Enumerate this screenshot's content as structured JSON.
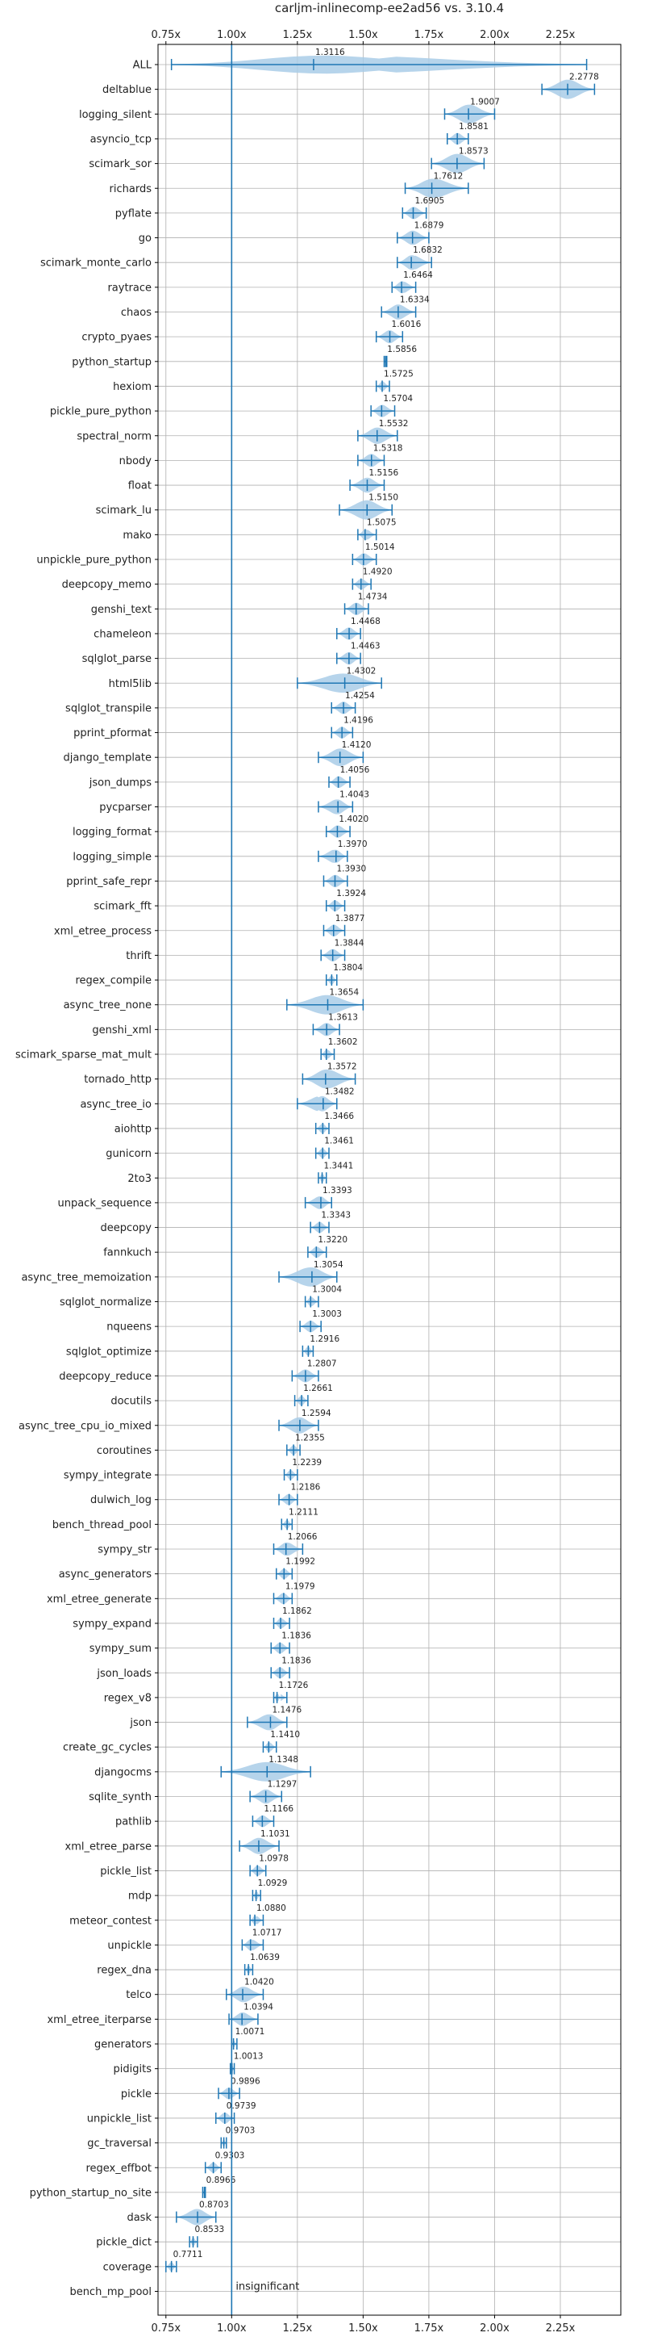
{
  "chart_data": {
    "type": "violin",
    "title": "carljm-inlinecomp-ee2ad56 vs. 3.10.4",
    "xlim": [
      0.72,
      2.48
    ],
    "xticks": [
      0.75,
      1.0,
      1.25,
      1.5,
      1.75,
      2.0,
      2.25
    ],
    "xtick_labels": [
      "0.75x",
      "1.00x",
      "1.25x",
      "1.50x",
      "1.75x",
      "2.00x",
      "2.25x"
    ],
    "reference_line": 1.0,
    "grid": true,
    "colors": {
      "accent": "#1f77b4",
      "violin": "#a9cce8",
      "grid": "#b0b0b0"
    },
    "annotation": "insignificant",
    "benchmarks": [
      {
        "name": "ALL",
        "value": 1.3116,
        "min": 0.7711,
        "max": 2.35
      },
      {
        "name": "deltablue",
        "value": 2.2778,
        "min": 2.18,
        "max": 2.38
      },
      {
        "name": "logging_silent",
        "value": 1.9007,
        "min": 1.81,
        "max": 2.0
      },
      {
        "name": "asyncio_tcp",
        "value": 1.8581,
        "min": 1.82,
        "max": 1.9
      },
      {
        "name": "scimark_sor",
        "value": 1.8573,
        "min": 1.76,
        "max": 1.96
      },
      {
        "name": "richards",
        "value": 1.7612,
        "min": 1.66,
        "max": 1.9
      },
      {
        "name": "pyflate",
        "value": 1.6905,
        "min": 1.65,
        "max": 1.74
      },
      {
        "name": "go",
        "value": 1.6879,
        "min": 1.63,
        "max": 1.75
      },
      {
        "name": "scimark_monte_carlo",
        "value": 1.6832,
        "min": 1.63,
        "max": 1.76
      },
      {
        "name": "raytrace",
        "value": 1.6464,
        "min": 1.61,
        "max": 1.7
      },
      {
        "name": "chaos",
        "value": 1.6334,
        "min": 1.57,
        "max": 1.7
      },
      {
        "name": "crypto_pyaes",
        "value": 1.6016,
        "min": 1.55,
        "max": 1.65
      },
      {
        "name": "python_startup",
        "value": 1.5856,
        "min": 1.58,
        "max": 1.59
      },
      {
        "name": "hexiom",
        "value": 1.5725,
        "min": 1.55,
        "max": 1.6
      },
      {
        "name": "pickle_pure_python",
        "value": 1.5704,
        "min": 1.53,
        "max": 1.62
      },
      {
        "name": "spectral_norm",
        "value": 1.5532,
        "min": 1.48,
        "max": 1.63
      },
      {
        "name": "nbody",
        "value": 1.5318,
        "min": 1.48,
        "max": 1.58
      },
      {
        "name": "float",
        "value": 1.5156,
        "min": 1.45,
        "max": 1.58
      },
      {
        "name": "scimark_lu",
        "value": 1.515,
        "min": 1.41,
        "max": 1.61
      },
      {
        "name": "mako",
        "value": 1.5075,
        "min": 1.48,
        "max": 1.55
      },
      {
        "name": "unpickle_pure_python",
        "value": 1.5014,
        "min": 1.46,
        "max": 1.55
      },
      {
        "name": "deepcopy_memo",
        "value": 1.492,
        "min": 1.46,
        "max": 1.53
      },
      {
        "name": "genshi_text",
        "value": 1.4734,
        "min": 1.43,
        "max": 1.52
      },
      {
        "name": "chameleon",
        "value": 1.4468,
        "min": 1.4,
        "max": 1.49
      },
      {
        "name": "sqlglot_parse",
        "value": 1.4463,
        "min": 1.4,
        "max": 1.49
      },
      {
        "name": "html5lib",
        "value": 1.4302,
        "min": 1.25,
        "max": 1.57
      },
      {
        "name": "sqlglot_transpile",
        "value": 1.4254,
        "min": 1.38,
        "max": 1.47
      },
      {
        "name": "pprint_pformat",
        "value": 1.4196,
        "min": 1.38,
        "max": 1.46
      },
      {
        "name": "django_template",
        "value": 1.412,
        "min": 1.33,
        "max": 1.5
      },
      {
        "name": "json_dumps",
        "value": 1.4056,
        "min": 1.37,
        "max": 1.45
      },
      {
        "name": "pycparser",
        "value": 1.4043,
        "min": 1.33,
        "max": 1.46
      },
      {
        "name": "logging_format",
        "value": 1.402,
        "min": 1.36,
        "max": 1.45
      },
      {
        "name": "logging_simple",
        "value": 1.397,
        "min": 1.33,
        "max": 1.44
      },
      {
        "name": "pprint_safe_repr",
        "value": 1.393,
        "min": 1.35,
        "max": 1.44
      },
      {
        "name": "scimark_fft",
        "value": 1.3924,
        "min": 1.36,
        "max": 1.43
      },
      {
        "name": "xml_etree_process",
        "value": 1.3877,
        "min": 1.35,
        "max": 1.43
      },
      {
        "name": "thrift",
        "value": 1.3844,
        "min": 1.34,
        "max": 1.43
      },
      {
        "name": "regex_compile",
        "value": 1.3804,
        "min": 1.36,
        "max": 1.4
      },
      {
        "name": "async_tree_none",
        "value": 1.3654,
        "min": 1.21,
        "max": 1.5
      },
      {
        "name": "genshi_xml",
        "value": 1.3613,
        "min": 1.31,
        "max": 1.41
      },
      {
        "name": "scimark_sparse_mat_mult",
        "value": 1.3602,
        "min": 1.34,
        "max": 1.39
      },
      {
        "name": "tornado_http",
        "value": 1.3572,
        "min": 1.27,
        "max": 1.47
      },
      {
        "name": "async_tree_io",
        "value": 1.3482,
        "min": 1.25,
        "max": 1.4
      },
      {
        "name": "aiohttp",
        "value": 1.3466,
        "min": 1.32,
        "max": 1.37
      },
      {
        "name": "gunicorn",
        "value": 1.3461,
        "min": 1.32,
        "max": 1.37
      },
      {
        "name": "2to3",
        "value": 1.3441,
        "min": 1.33,
        "max": 1.36
      },
      {
        "name": "unpack_sequence",
        "value": 1.3393,
        "min": 1.28,
        "max": 1.38
      },
      {
        "name": "deepcopy",
        "value": 1.3343,
        "min": 1.3,
        "max": 1.37
      },
      {
        "name": "fannkuch",
        "value": 1.322,
        "min": 1.29,
        "max": 1.36
      },
      {
        "name": "async_tree_memoization",
        "value": 1.3054,
        "min": 1.18,
        "max": 1.4
      },
      {
        "name": "sqlglot_normalize",
        "value": 1.3004,
        "min": 1.28,
        "max": 1.33
      },
      {
        "name": "nqueens",
        "value": 1.3003,
        "min": 1.26,
        "max": 1.34
      },
      {
        "name": "sqlglot_optimize",
        "value": 1.2916,
        "min": 1.27,
        "max": 1.31
      },
      {
        "name": "deepcopy_reduce",
        "value": 1.2807,
        "min": 1.23,
        "max": 1.33
      },
      {
        "name": "docutils",
        "value": 1.2661,
        "min": 1.24,
        "max": 1.29
      },
      {
        "name": "async_tree_cpu_io_mixed",
        "value": 1.2594,
        "min": 1.18,
        "max": 1.33
      },
      {
        "name": "coroutines",
        "value": 1.2355,
        "min": 1.21,
        "max": 1.26
      },
      {
        "name": "sympy_integrate",
        "value": 1.2239,
        "min": 1.2,
        "max": 1.25
      },
      {
        "name": "dulwich_log",
        "value": 1.2186,
        "min": 1.18,
        "max": 1.25
      },
      {
        "name": "bench_thread_pool",
        "value": 1.2111,
        "min": 1.19,
        "max": 1.23
      },
      {
        "name": "sympy_str",
        "value": 1.2066,
        "min": 1.16,
        "max": 1.27
      },
      {
        "name": "async_generators",
        "value": 1.1992,
        "min": 1.17,
        "max": 1.23
      },
      {
        "name": "xml_etree_generate",
        "value": 1.1979,
        "min": 1.16,
        "max": 1.23
      },
      {
        "name": "sympy_expand",
        "value": 1.1862,
        "min": 1.16,
        "max": 1.22
      },
      {
        "name": "sympy_sum",
        "value": 1.1836,
        "min": 1.15,
        "max": 1.22
      },
      {
        "name": "json_loads",
        "value": 1.1836,
        "min": 1.15,
        "max": 1.22
      },
      {
        "name": "regex_v8",
        "value": 1.1726,
        "min": 1.16,
        "max": 1.21
      },
      {
        "name": "json",
        "value": 1.1476,
        "min": 1.06,
        "max": 1.21
      },
      {
        "name": "create_gc_cycles",
        "value": 1.141,
        "min": 1.12,
        "max": 1.17
      },
      {
        "name": "djangocms",
        "value": 1.1348,
        "min": 0.96,
        "max": 1.3
      },
      {
        "name": "sqlite_synth",
        "value": 1.1297,
        "min": 1.07,
        "max": 1.19
      },
      {
        "name": "pathlib",
        "value": 1.1166,
        "min": 1.08,
        "max": 1.16
      },
      {
        "name": "xml_etree_parse",
        "value": 1.1031,
        "min": 1.03,
        "max": 1.18
      },
      {
        "name": "pickle_list",
        "value": 1.0978,
        "min": 1.07,
        "max": 1.13
      },
      {
        "name": "mdp",
        "value": 1.0929,
        "min": 1.08,
        "max": 1.11
      },
      {
        "name": "meteor_contest",
        "value": 1.088,
        "min": 1.07,
        "max": 1.12
      },
      {
        "name": "unpickle",
        "value": 1.0717,
        "min": 1.04,
        "max": 1.12
      },
      {
        "name": "regex_dna",
        "value": 1.0639,
        "min": 1.05,
        "max": 1.08
      },
      {
        "name": "telco",
        "value": 1.042,
        "min": 0.98,
        "max": 1.12
      },
      {
        "name": "xml_etree_iterparse",
        "value": 1.0394,
        "min": 0.99,
        "max": 1.1
      },
      {
        "name": "generators",
        "value": 1.0071,
        "min": 1.0,
        "max": 1.02
      },
      {
        "name": "pidigits",
        "value": 1.0013,
        "min": 0.995,
        "max": 1.01
      },
      {
        "name": "pickle",
        "value": 0.9896,
        "min": 0.95,
        "max": 1.03
      },
      {
        "name": "unpickle_list",
        "value": 0.9739,
        "min": 0.94,
        "max": 1.01
      },
      {
        "name": "gc_traversal",
        "value": 0.9703,
        "min": 0.96,
        "max": 0.98
      },
      {
        "name": "regex_effbot",
        "value": 0.9303,
        "min": 0.9,
        "max": 0.96
      },
      {
        "name": "python_startup_no_site",
        "value": 0.8966,
        "min": 0.89,
        "max": 0.9
      },
      {
        "name": "dask",
        "value": 0.8703,
        "min": 0.79,
        "max": 0.94
      },
      {
        "name": "pickle_dict",
        "value": 0.8533,
        "min": 0.84,
        "max": 0.87
      },
      {
        "name": "coverage",
        "value": 0.7711,
        "min": 0.75,
        "max": 0.79
      },
      {
        "name": "bench_mp_pool",
        "value": null,
        "label": "insignificant"
      }
    ]
  }
}
